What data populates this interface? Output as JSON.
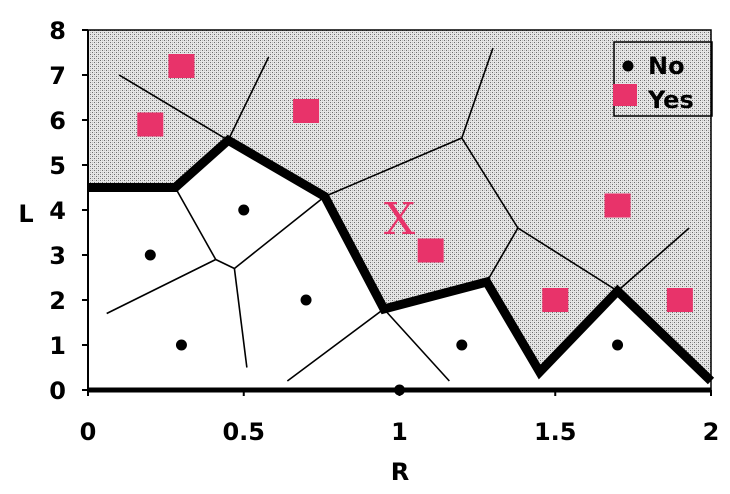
{
  "chart_data": {
    "type": "scatter",
    "title": "",
    "xlabel": "R",
    "ylabel": "L",
    "xlim": [
      0,
      2
    ],
    "ylim": [
      0,
      8
    ],
    "xticks": [
      "0",
      "0.5",
      "1",
      "1.5",
      "2"
    ],
    "xtick_values": [
      0,
      0.5,
      1,
      1.5,
      2
    ],
    "yticks": [
      "0",
      "1",
      "2",
      "3",
      "4",
      "5",
      "6",
      "7",
      "8"
    ],
    "ytick_values": [
      0,
      1,
      2,
      3,
      4,
      5,
      6,
      7,
      8
    ],
    "legend_position": "top-right",
    "grid": false,
    "series": [
      {
        "name": "No",
        "marker": "dot",
        "color": "#000000",
        "points": [
          {
            "x": 0.2,
            "y": 3.0
          },
          {
            "x": 0.3,
            "y": 1.0
          },
          {
            "x": 0.5,
            "y": 4.0
          },
          {
            "x": 0.7,
            "y": 2.0
          },
          {
            "x": 1.0,
            "y": 0.0
          },
          {
            "x": 1.2,
            "y": 1.0
          },
          {
            "x": 1.7,
            "y": 1.0
          }
        ]
      },
      {
        "name": "Yes",
        "marker": "square",
        "color": "#e8336a",
        "points": [
          {
            "x": 0.2,
            "y": 5.9
          },
          {
            "x": 0.3,
            "y": 7.2
          },
          {
            "x": 0.7,
            "y": 6.2
          },
          {
            "x": 1.1,
            "y": 3.1
          },
          {
            "x": 1.5,
            "y": 2.0
          },
          {
            "x": 1.7,
            "y": 4.1
          },
          {
            "x": 1.9,
            "y": 2.0
          }
        ]
      }
    ],
    "annotations": [
      {
        "label": "X",
        "x": 1.0,
        "y": 3.8,
        "color": "#e8336a"
      }
    ],
    "voronoi_edges": [
      [
        [
          0.1,
          7.0
        ],
        [
          0.45,
          5.55
        ]
      ],
      [
        [
          0.45,
          5.55
        ],
        [
          0.58,
          7.4
        ]
      ],
      [
        [
          0.45,
          5.55
        ],
        [
          0.28,
          4.5
        ]
      ],
      [
        [
          0.28,
          4.5
        ],
        [
          0.0,
          4.5
        ]
      ],
      [
        [
          0.28,
          4.5
        ],
        [
          0.41,
          2.9
        ]
      ],
      [
        [
          0.41,
          2.9
        ],
        [
          0.06,
          1.7
        ]
      ],
      [
        [
          0.41,
          2.9
        ],
        [
          0.47,
          2.7
        ]
      ],
      [
        [
          0.47,
          2.7
        ],
        [
          0.51,
          0.5
        ]
      ],
      [
        [
          0.47,
          2.7
        ],
        [
          0.76,
          4.3
        ]
      ],
      [
        [
          0.76,
          4.3
        ],
        [
          0.45,
          5.55
        ]
      ],
      [
        [
          0.76,
          4.3
        ],
        [
          1.2,
          5.6
        ]
      ],
      [
        [
          1.2,
          5.6
        ],
        [
          1.3,
          7.6
        ]
      ],
      [
        [
          1.2,
          5.6
        ],
        [
          1.38,
          3.6
        ]
      ],
      [
        [
          1.38,
          3.6
        ],
        [
          1.28,
          2.4
        ]
      ],
      [
        [
          1.38,
          3.6
        ],
        [
          1.7,
          2.2
        ]
      ],
      [
        [
          1.28,
          2.4
        ],
        [
          0.95,
          1.8
        ]
      ],
      [
        [
          0.95,
          1.8
        ],
        [
          0.76,
          4.3
        ]
      ],
      [
        [
          0.95,
          1.8
        ],
        [
          0.64,
          0.2
        ]
      ],
      [
        [
          0.95,
          1.8
        ],
        [
          1.16,
          0.2
        ]
      ],
      [
        [
          1.28,
          2.4
        ],
        [
          1.45,
          0.4
        ]
      ],
      [
        [
          1.45,
          0.4
        ],
        [
          1.7,
          2.2
        ]
      ],
      [
        [
          1.7,
          2.2
        ],
        [
          1.93,
          3.6
        ]
      ],
      [
        [
          1.7,
          2.2
        ],
        [
          2.0,
          0.2
        ]
      ]
    ],
    "decision_boundary": [
      [
        0.0,
        4.5
      ],
      [
        0.28,
        4.5
      ],
      [
        0.45,
        5.55
      ],
      [
        0.76,
        4.3
      ],
      [
        0.95,
        1.8
      ],
      [
        1.28,
        2.4
      ],
      [
        1.45,
        0.4
      ],
      [
        1.7,
        2.2
      ],
      [
        2.0,
        0.2
      ]
    ],
    "shaded_region": "yes-region"
  },
  "legend": {
    "no_label": "No",
    "yes_label": "Yes"
  }
}
